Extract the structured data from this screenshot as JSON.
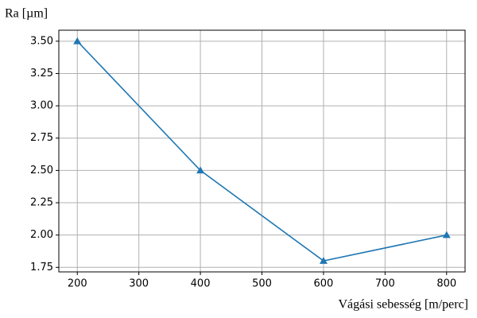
{
  "chart_data": {
    "type": "line",
    "y_label": "Ra [µm]",
    "x_label": "Vágási sebesség [m/perc]",
    "x": [
      200,
      400,
      600,
      800
    ],
    "series": [
      {
        "name": "Ra",
        "color": "#1f77b4",
        "marker": "triangle",
        "values": [
          3.5,
          2.5,
          1.8,
          2.0
        ]
      }
    ],
    "xlim": [
      170,
      830
    ],
    "ylim": [
      1.715,
      3.585
    ],
    "xticks": [
      200,
      300,
      400,
      500,
      600,
      700,
      800
    ],
    "yticks": [
      {
        "value": 1.75,
        "label": "1.75"
      },
      {
        "value": 2.0,
        "label": "2.00"
      },
      {
        "value": 2.25,
        "label": "2.25"
      },
      {
        "value": 2.5,
        "label": "2.50"
      },
      {
        "value": 2.75,
        "label": "2.75"
      },
      {
        "value": 3.0,
        "label": "3.00"
      },
      {
        "value": 3.25,
        "label": "3.25"
      },
      {
        "value": 3.5,
        "label": "3.50"
      }
    ],
    "grid": true
  }
}
